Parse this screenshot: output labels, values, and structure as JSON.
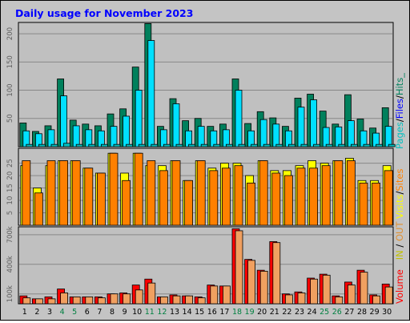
{
  "title": "Daily usage for November 2023",
  "colors": {
    "background": "#c4c4c4",
    "plot": "#c0c0c0",
    "title": "#0000ff",
    "hits": "#00805c",
    "files": "#00e0ff",
    "pages": "#00c0c0",
    "visits": "#ffff00",
    "sites": "#ff8000",
    "kbytes": "#ff0000",
    "volume_bar": "#f0a060",
    "in_out_in": "#c0c000",
    "in_out_out": "#e09030"
  },
  "chart_data": [
    {
      "type": "bar",
      "id": "hits-files-pages",
      "categories": [
        "1",
        "2",
        "3",
        "4",
        "5",
        "6",
        "7",
        "8",
        "9",
        "10",
        "11",
        "12",
        "13",
        "14",
        "15",
        "16",
        "17",
        "18",
        "19",
        "20",
        "21",
        "22",
        "23",
        "24",
        "25",
        "26",
        "27",
        "28",
        "29",
        "30"
      ],
      "weekend_days": [
        "4",
        "5",
        "11",
        "12",
        "18",
        "19",
        "25",
        "26"
      ],
      "ylim": [
        0,
        220
      ],
      "yticks": [
        50,
        100,
        150,
        200
      ],
      "series": [
        {
          "name": "Hits",
          "values": [
            42,
            27,
            37,
            120,
            47,
            40,
            37,
            58,
            67,
            141,
            218,
            36,
            85,
            46,
            50,
            36,
            40,
            120,
            41,
            62,
            51,
            36,
            86,
            93,
            63,
            40,
            92,
            49,
            33,
            69
          ]
        },
        {
          "name": "Files",
          "values": [
            28,
            23,
            30,
            90,
            37,
            30,
            28,
            36,
            54,
            100,
            188,
            30,
            76,
            28,
            36,
            28,
            30,
            100,
            28,
            48,
            40,
            28,
            70,
            83,
            34,
            35,
            46,
            28,
            24,
            36
          ]
        },
        {
          "name": "Pages",
          "values": [
            4,
            4,
            4,
            6,
            4,
            4,
            4,
            4,
            4,
            4,
            4,
            4,
            4,
            4,
            4,
            4,
            4,
            4,
            4,
            4,
            4,
            4,
            4,
            4,
            4,
            4,
            4,
            4,
            4,
            4
          ]
        }
      ],
      "legend": [
        "Pages",
        "/",
        "Files",
        "/",
        "Hits_"
      ]
    },
    {
      "type": "bar",
      "id": "visits-sites",
      "categories": [
        "1",
        "2",
        "3",
        "4",
        "5",
        "6",
        "7",
        "8",
        "9",
        "10",
        "11",
        "12",
        "13",
        "14",
        "15",
        "16",
        "17",
        "18",
        "19",
        "20",
        "21",
        "22",
        "23",
        "24",
        "25",
        "26",
        "27",
        "28",
        "29",
        "30"
      ],
      "ylim": [
        0,
        31
      ],
      "yticks": [
        5,
        10,
        15,
        20,
        25
      ],
      "series": [
        {
          "name": "Visits",
          "values": [
            24,
            15,
            24,
            26,
            26,
            23,
            21,
            29,
            21,
            29,
            24,
            24,
            26,
            18,
            26,
            23,
            25,
            25,
            20,
            26,
            22,
            22,
            24,
            26,
            25,
            26,
            27,
            18,
            18,
            24
          ]
        },
        {
          "name": "Sites",
          "values": [
            26,
            13,
            26,
            26,
            26,
            23,
            21,
            29,
            18,
            29,
            26,
            22,
            26,
            18,
            26,
            22,
            23,
            24,
            17,
            26,
            21,
            20,
            23,
            23,
            24,
            26,
            26,
            17,
            17,
            22
          ]
        }
      ],
      "legend": [
        "Visits",
        "/",
        "Sites"
      ]
    },
    {
      "type": "bar",
      "id": "volume",
      "categories": [
        "1",
        "2",
        "3",
        "4",
        "5",
        "6",
        "7",
        "8",
        "9",
        "10",
        "11",
        "12",
        "13",
        "14",
        "15",
        "16",
        "17",
        "18",
        "19",
        "20",
        "21",
        "22",
        "23",
        "24",
        "25",
        "26",
        "27",
        "28",
        "29",
        "30"
      ],
      "ylim": [
        0,
        780000
      ],
      "yticks": [
        100000,
        400000,
        700000
      ],
      "ytick_labels": [
        "100k",
        "400k",
        "700k"
      ],
      "series": [
        {
          "name": "Volume",
          "values": [
            80000,
            50000,
            70000,
            150000,
            70000,
            70000,
            70000,
            100000,
            110000,
            190000,
            250000,
            70000,
            90000,
            80000,
            70000,
            190000,
            180000,
            760000,
            450000,
            340000,
            630000,
            100000,
            120000,
            260000,
            300000,
            80000,
            220000,
            340000,
            90000,
            200000
          ]
        },
        {
          "name": "IN",
          "values": [
            60000,
            50000,
            50000,
            110000,
            70000,
            70000,
            60000,
            100000,
            100000,
            140000,
            210000,
            70000,
            80000,
            80000,
            60000,
            180000,
            180000,
            740000,
            440000,
            330000,
            620000,
            90000,
            110000,
            250000,
            290000,
            70000,
            190000,
            320000,
            80000,
            170000
          ]
        }
      ],
      "legend": [
        "Volume",
        "IN",
        "OUT"
      ]
    }
  ]
}
